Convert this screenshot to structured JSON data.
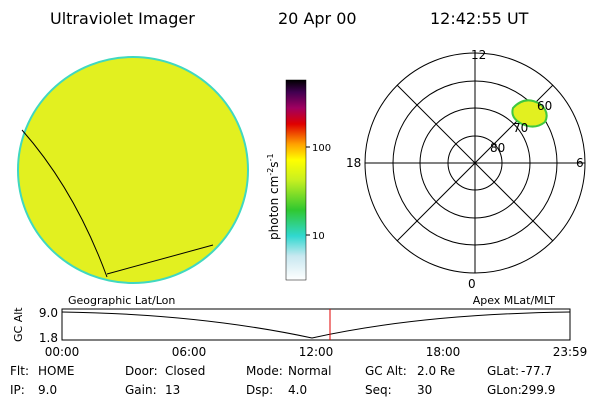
{
  "header": {
    "instrument": "Ultraviolet Imager",
    "date": "20 Apr 00",
    "time": "12:42:55 UT"
  },
  "colorbar": {
    "ticks": [
      "100",
      "10"
    ],
    "unit": {
      "base": "photon cm",
      "exp1": "-2",
      "mid": "s",
      "exp2": "-1"
    }
  },
  "polar": {
    "mlt": {
      "top": "12",
      "right": "6",
      "bottom": "0",
      "left": "18"
    },
    "lat": [
      "80",
      "70",
      "60"
    ]
  },
  "strip": {
    "axis_label": "GC Alt",
    "ticks": [
      "9.0",
      "1.8"
    ],
    "left_title": "Geographic Lat/Lon",
    "right_title": "Apex MLat/MLT",
    "times": [
      "00:00",
      "06:00",
      "12:00",
      "18:00",
      "23:59"
    ]
  },
  "status": {
    "rows": [
      [
        [
          "Flt:",
          "HOME"
        ],
        [
          "Door:",
          "Closed"
        ],
        [
          "Mode:",
          "Normal"
        ],
        [
          "GC Alt:",
          "2.0 Re"
        ],
        [
          "GLat:",
          "-77.7"
        ]
      ],
      [
        [
          "IP:",
          "9.0"
        ],
        [
          "Gain:",
          "13"
        ],
        [
          "Dsp:",
          "4.0"
        ],
        [
          "Seq:",
          "30"
        ],
        [
          "GLon:",
          "299.9"
        ]
      ]
    ]
  }
}
